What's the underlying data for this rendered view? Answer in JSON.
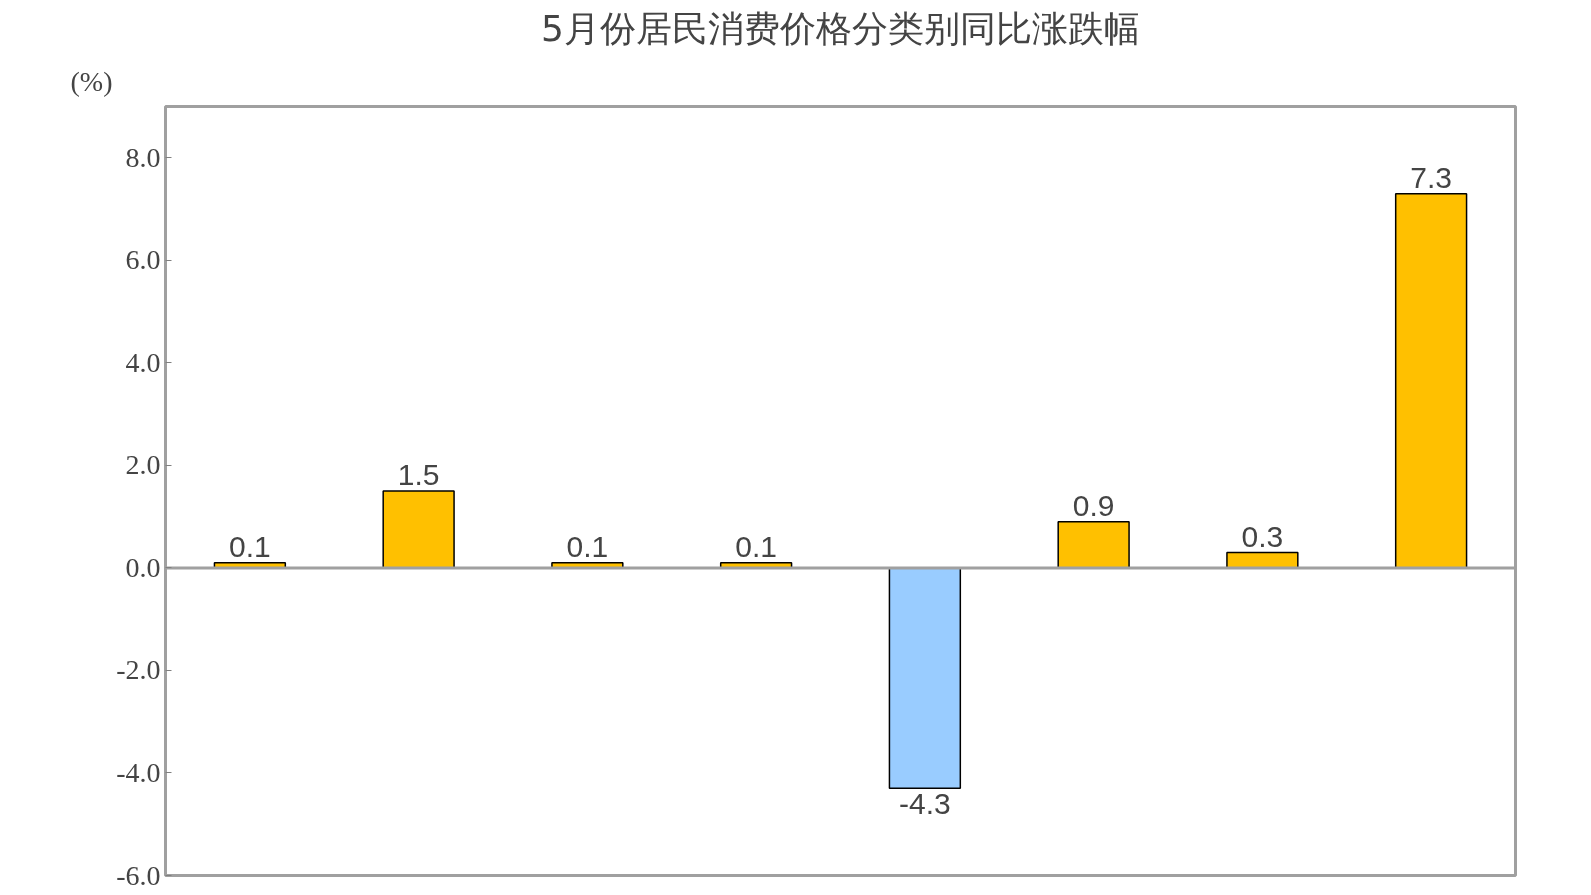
{
  "chart_data": {
    "type": "bar",
    "title": "5月份居民消费价格分类别同比涨跌幅",
    "ylabel": "(%)",
    "categories": [
      null,
      null,
      null,
      null,
      null,
      null,
      null,
      null
    ],
    "values": [
      0.1,
      1.5,
      0.1,
      0.1,
      -4.3,
      0.9,
      0.3,
      7.3
    ],
    "colors": [
      "#ffc000",
      "#ffc000",
      "#ffc000",
      "#ffc000",
      "#99ccff",
      "#ffc000",
      "#ffc000",
      "#ffc000"
    ],
    "ylim": [
      -6,
      9
    ],
    "yticks": [
      {
        "value": -6,
        "label": "-6.0"
      },
      {
        "value": -4,
        "label": "-4.0"
      },
      {
        "value": -2,
        "label": "-2.0"
      },
      {
        "value": 0,
        "label": "0.0"
      },
      {
        "value": 2,
        "label": "2.0"
      },
      {
        "value": 4,
        "label": "4.0"
      },
      {
        "value": 6,
        "label": "6.0"
      },
      {
        "value": 8,
        "label": "8.0"
      }
    ],
    "data_labels": true,
    "tick_labels": "y"
  }
}
